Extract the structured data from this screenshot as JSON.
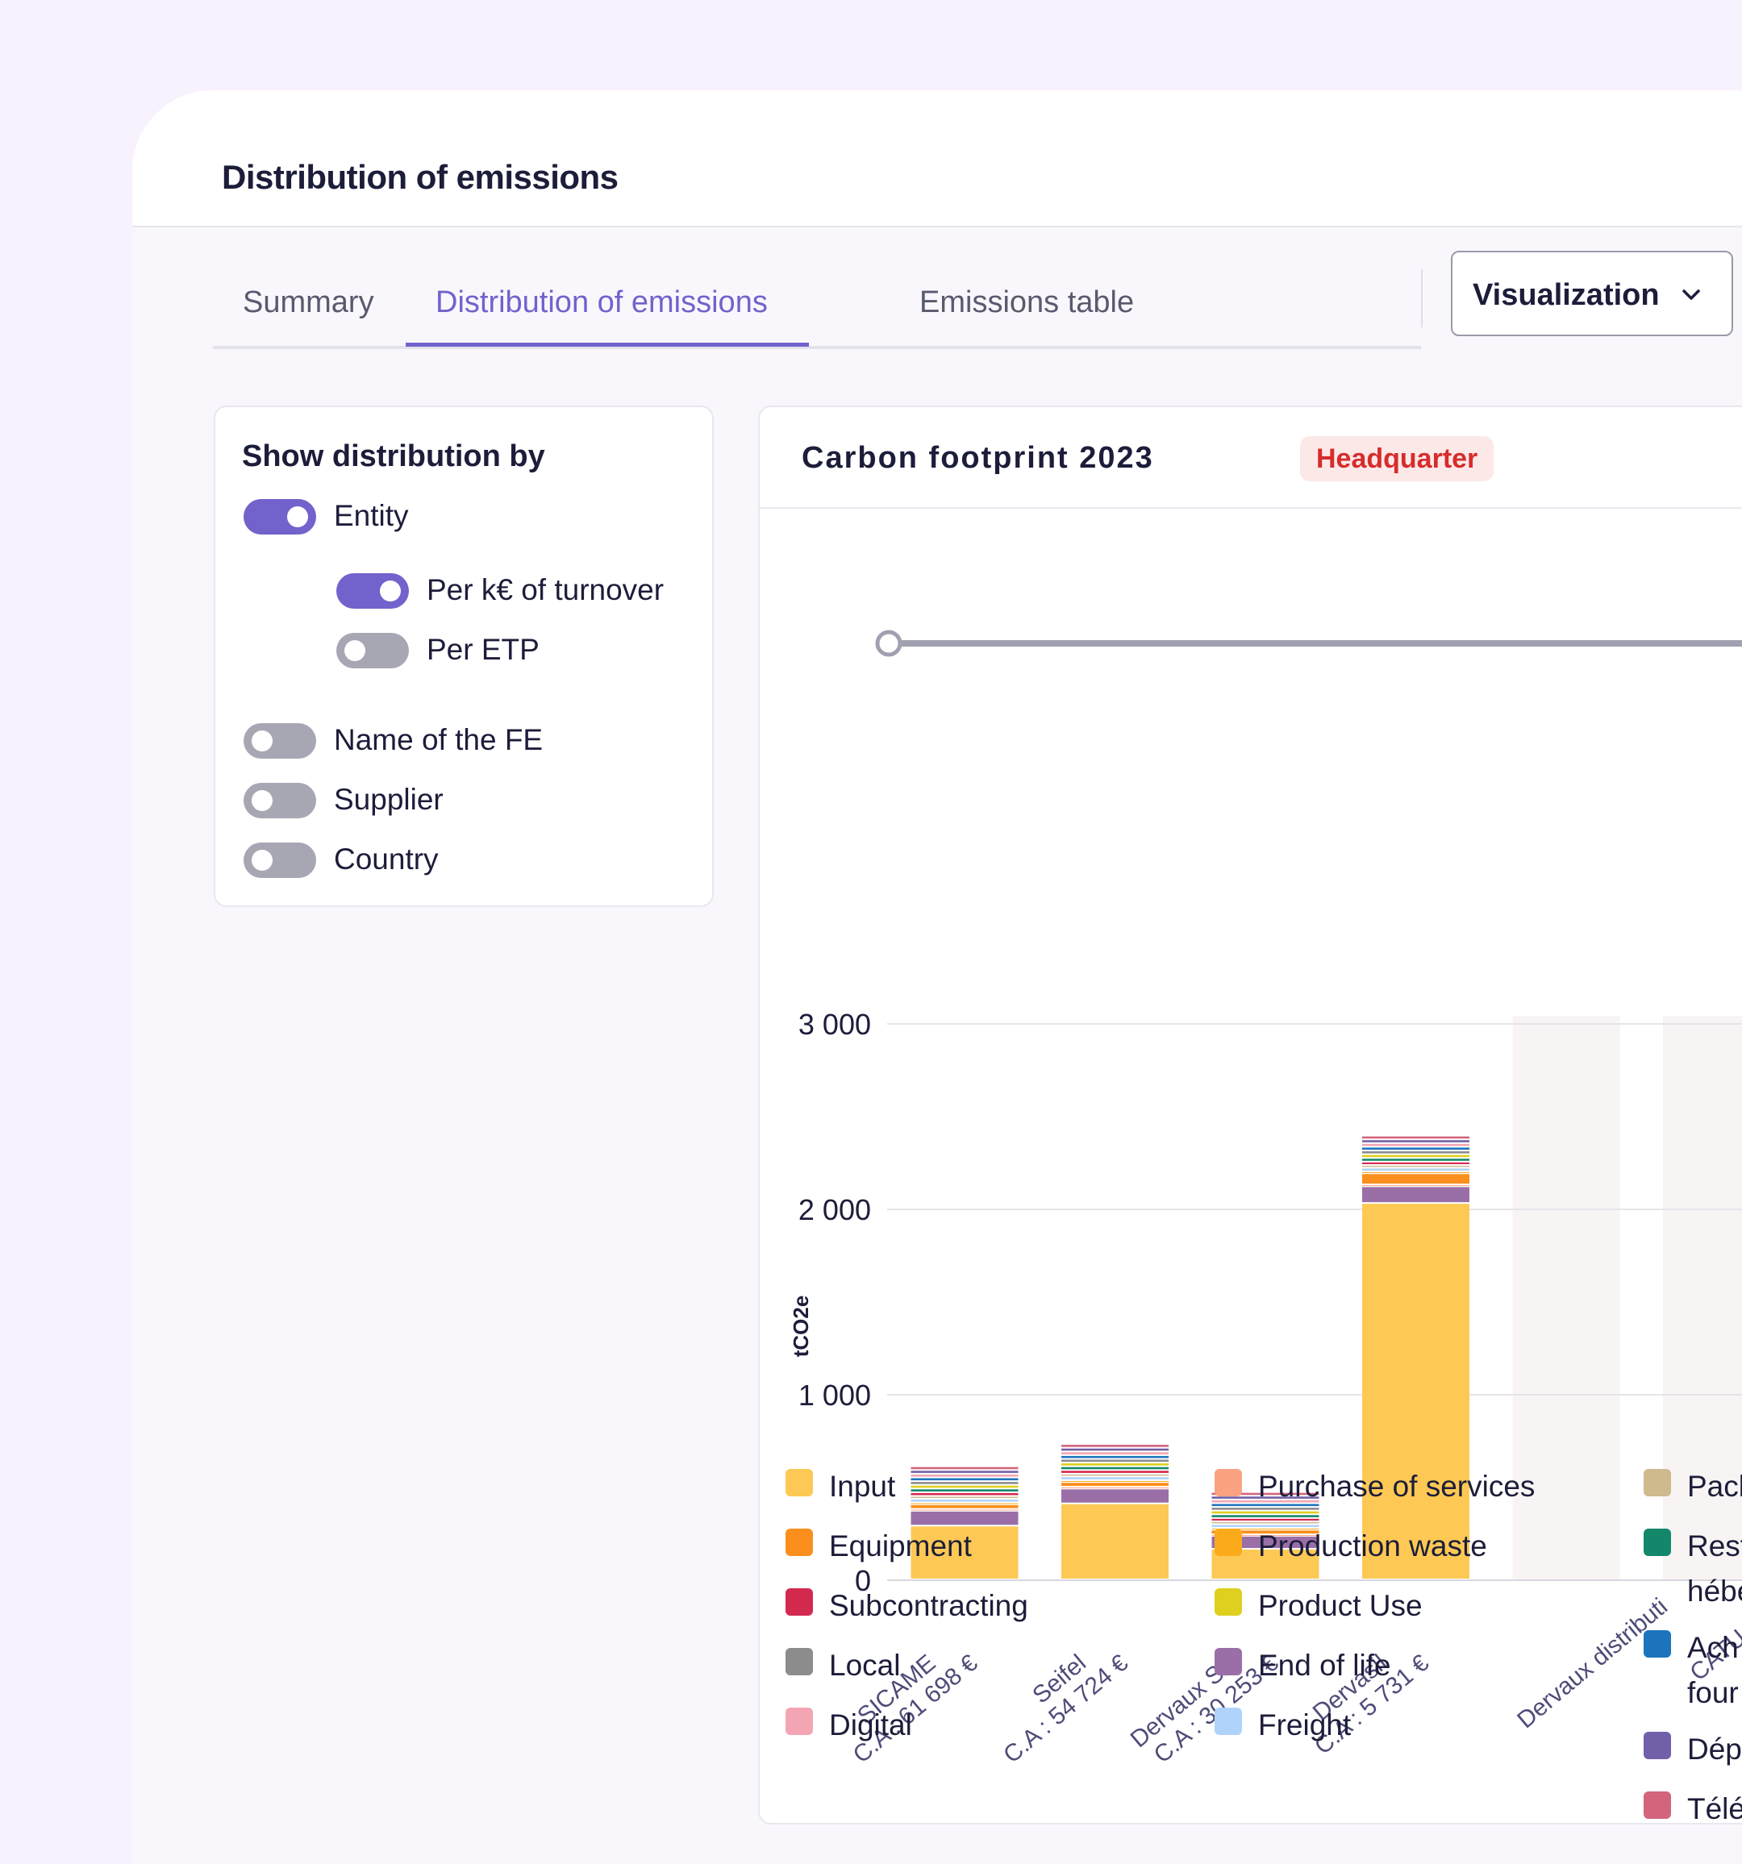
{
  "header": {
    "title": "Distribution of emissions"
  },
  "tabs": [
    {
      "label": "Summary",
      "active": false
    },
    {
      "label": "Distribution of emissions",
      "active": true
    },
    {
      "label": "Emissions table",
      "active": false
    }
  ],
  "visualization": {
    "label": "Visualization",
    "icon": "chevron-down-icon"
  },
  "distribution_panel": {
    "title": "Show distribution by",
    "options": [
      {
        "label": "Entity",
        "on": true,
        "level": 0
      },
      {
        "label": "Per k€ of turnover",
        "on": true,
        "level": 1
      },
      {
        "label": "Per ETP",
        "on": false,
        "level": 1
      },
      {
        "label": "Name of the FE",
        "on": false,
        "level": 0
      },
      {
        "label": "Supplier",
        "on": false,
        "level": 0
      },
      {
        "label": "Country",
        "on": false,
        "level": 0
      }
    ]
  },
  "chart_panel": {
    "title": "Carbon footprint 2023",
    "badge": "Headquarter"
  },
  "colors": {
    "accent": "#7262cc",
    "toggle_off": "#a7a7b4",
    "badge_text": "#d62c2c",
    "badge_bg": "#fde8e8",
    "slider_track": "#a0a0b0"
  },
  "chart_data": {
    "type": "bar",
    "stacked": true,
    "ylabel": "tCO2e",
    "ylim": [
      0,
      3000
    ],
    "yticks": [
      {
        "value": 0,
        "label": "0"
      },
      {
        "value": 1000,
        "label": "1 000"
      },
      {
        "value": 2000,
        "label": "2 000"
      },
      {
        "value": 3000,
        "label": "3 000"
      }
    ],
    "grid": true,
    "categories": [
      {
        "name": "SICAME",
        "sublabel": "C.A : 61 698 €"
      },
      {
        "name": "Seifel",
        "sublabel": "C.A : 54 724 €"
      },
      {
        "name": "Dervaux SA",
        "sublabel": "C.A : 30 253 €"
      },
      {
        "name": "Dervasil",
        "sublabel": "C.A : 5 731 €"
      },
      {
        "name": "CATU",
        "sublabel": ""
      },
      {
        "name": "Dervaux distributi",
        "sublabel": ""
      }
    ],
    "series": [
      {
        "name": "Input",
        "color": "#fdc954",
        "values": [
          290,
          410,
          165,
          2030,
          0,
          0
        ]
      },
      {
        "name": "End of life",
        "color": "#9a6fa8",
        "values": [
          80,
          80,
          70,
          90,
          0,
          0
        ]
      },
      {
        "name": "Purchase of services",
        "color": "#fba282",
        "values": [
          10,
          10,
          8,
          10,
          0,
          0
        ]
      },
      {
        "name": "Equipment",
        "color": "#fa8f1d",
        "values": [
          25,
          25,
          25,
          60,
          0,
          0
        ]
      },
      {
        "name": "Production waste",
        "color": "#fbaa1a",
        "values": [
          10,
          10,
          10,
          10,
          0,
          0
        ]
      },
      {
        "name": "Freight",
        "color": "#b0d3fb",
        "values": [
          20,
          20,
          20,
          20,
          0,
          0
        ]
      },
      {
        "name": "Packaging",
        "color": "#cfba8d",
        "values": [
          15,
          15,
          15,
          15,
          0,
          0
        ]
      },
      {
        "name": "Subcontracting",
        "color": "#d4294f",
        "values": [
          20,
          20,
          18,
          18,
          0,
          0
        ]
      },
      {
        "name": "Restauration et hébergement",
        "color": "#14876a",
        "values": [
          20,
          20,
          20,
          20,
          0,
          0
        ]
      },
      {
        "name": "Product Use",
        "color": "#dfcf1e",
        "values": [
          20,
          20,
          20,
          20,
          0,
          0
        ]
      },
      {
        "name": "Local",
        "color": "#8c8c8c",
        "values": [
          20,
          20,
          20,
          20,
          0,
          0
        ]
      },
      {
        "name": "Achats fournisseurs",
        "color": "#1c75bc",
        "values": [
          20,
          20,
          20,
          20,
          0,
          0
        ]
      },
      {
        "name": "Digital",
        "color": "#f4a5b4",
        "values": [
          20,
          20,
          20,
          20,
          0,
          0
        ]
      },
      {
        "name": "Déplacements",
        "color": "#7160a8",
        "values": [
          20,
          20,
          20,
          20,
          0,
          0
        ]
      },
      {
        "name": "Télétravail",
        "color": "#d2657b",
        "values": [
          20,
          20,
          20,
          20,
          0,
          0
        ]
      }
    ]
  },
  "legend": [
    {
      "label": "Input",
      "color": "#fdc954"
    },
    {
      "label": "Equipment",
      "color": "#fa8f1d"
    },
    {
      "label": "Subcontracting",
      "color": "#d4294f"
    },
    {
      "label": "Local",
      "color": "#8c8c8c"
    },
    {
      "label": "Digital",
      "color": "#f4a5b4"
    },
    {
      "label": "Purchase of services",
      "color": "#fba282"
    },
    {
      "label": "Production waste",
      "color": "#fbaa1a"
    },
    {
      "label": "Product Use",
      "color": "#dfcf1e"
    },
    {
      "label": "End of life",
      "color": "#9a6fa8"
    },
    {
      "label": "Freight",
      "color": "#b0d3fb"
    },
    {
      "label": "Pacl",
      "color": "#cfba8d"
    },
    {
      "label": "Rest\nhébe",
      "color": "#14876a"
    },
    {
      "label": "Ach\nfour",
      "color": "#1c75bc"
    },
    {
      "label": "Dép",
      "color": "#7160a8"
    },
    {
      "label": "Télé",
      "color": "#d2657b"
    }
  ]
}
